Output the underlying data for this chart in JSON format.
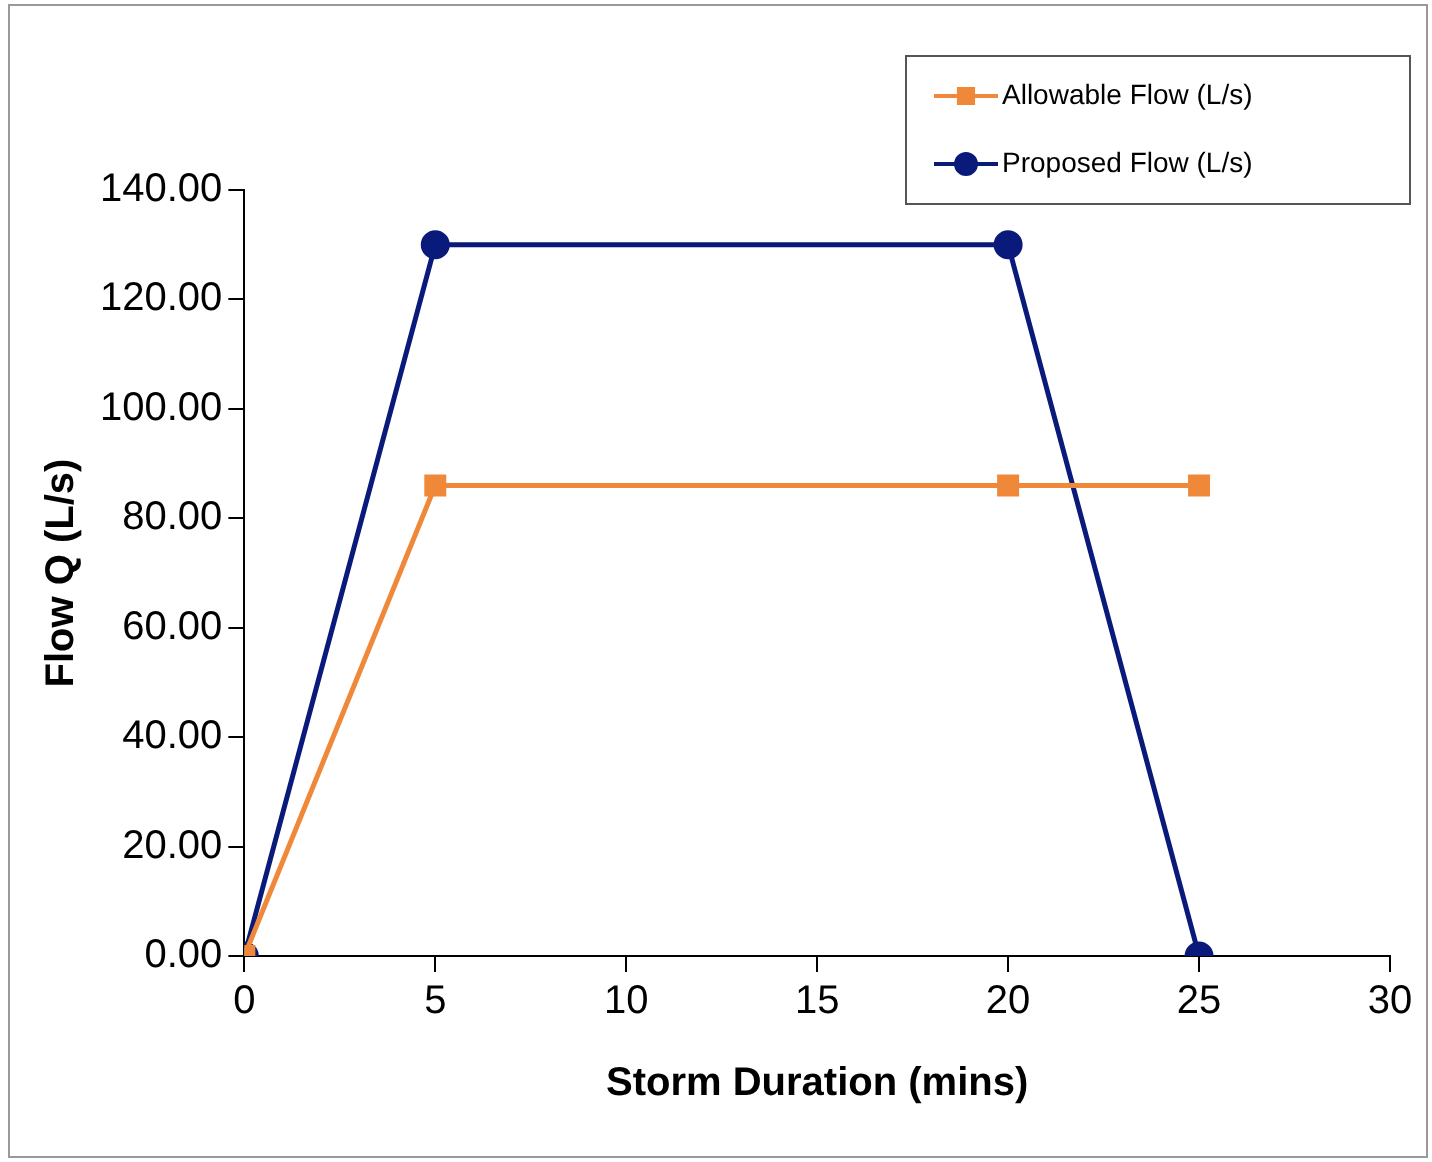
{
  "chart_data": {
    "type": "line",
    "xlabel": "Storm Duration (mins)",
    "ylabel": "Flow Q (L/s)",
    "x": [
      0,
      5,
      20,
      25
    ],
    "series": [
      {
        "name": "Allowable Flow (L/s)",
        "color": "#f0883a",
        "marker": "square",
        "values": [
          0,
          86,
          86,
          86
        ]
      },
      {
        "name": "Proposed Flow (L/s)",
        "color": "#0a1a7a",
        "marker": "circle",
        "values": [
          0,
          130,
          130,
          0
        ]
      }
    ],
    "xlim": [
      0,
      30
    ],
    "xticks": [
      0,
      5,
      10,
      15,
      20,
      25,
      30
    ],
    "ylim": [
      0,
      140
    ],
    "yticks": [
      {
        "value": 0,
        "label": "0.00"
      },
      {
        "value": 20,
        "label": "20.00"
      },
      {
        "value": 40,
        "label": "40.00"
      },
      {
        "value": 60,
        "label": "60.00"
      },
      {
        "value": 80,
        "label": "80.00"
      },
      {
        "value": 100,
        "label": "100.00"
      },
      {
        "value": 120,
        "label": "120.00"
      },
      {
        "value": 140,
        "label": "140.00"
      }
    ],
    "grid": false,
    "legend": "top right"
  }
}
